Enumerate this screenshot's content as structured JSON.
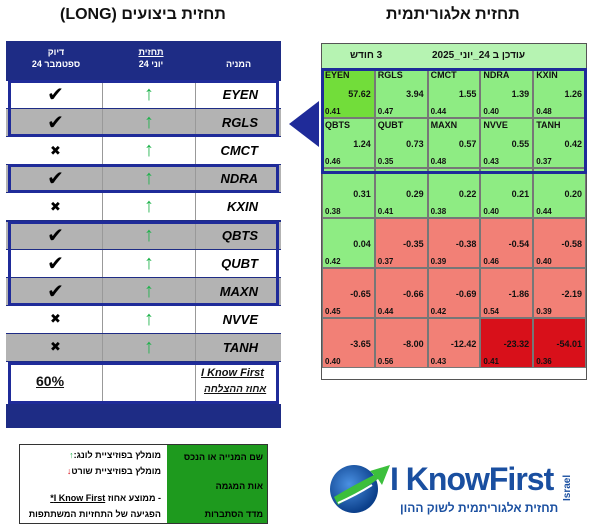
{
  "titles": {
    "right": "תחזית אלגוריתמית",
    "left": "תחזית ביצועים (LONG)"
  },
  "perf": {
    "headers": {
      "accuracy": "דיוק",
      "accuracy_date": "24 ספטמבר",
      "forecast": "תחזית",
      "forecast_date": "24 יוני",
      "stock": "המניה"
    },
    "rows": [
      {
        "ticker": "EYEN",
        "result": "check"
      },
      {
        "ticker": "RGLS",
        "result": "check"
      },
      {
        "ticker": "CMCT",
        "result": "x"
      },
      {
        "ticker": "NDRA",
        "result": "check"
      },
      {
        "ticker": "KXIN",
        "result": "x"
      },
      {
        "ticker": "QBTS",
        "result": "check"
      },
      {
        "ticker": "QUBT",
        "result": "check"
      },
      {
        "ticker": "MAXN",
        "result": "check"
      },
      {
        "ticker": "NVVE",
        "result": "x"
      },
      {
        "ticker": "TANH",
        "result": "x"
      }
    ],
    "symbols": {
      "check": "✔",
      "x": "✖",
      "up": "↑"
    },
    "footer": {
      "percent": "60%",
      "brand": "I Know First",
      "label": "אחוז ההצלחה"
    }
  },
  "heatmap": {
    "updated": "עודכן ב 24_יוני_2025",
    "horizon": "3 חודש",
    "cells": [
      {
        "name": "EYEN",
        "value": "57.62",
        "p": "0.41",
        "color": "#72dd3a"
      },
      {
        "name": "RGLS",
        "value": "3.94",
        "p": "0.47",
        "color": "#8eec83"
      },
      {
        "name": "CMCT",
        "value": "1.55",
        "p": "0.44",
        "color": "#8eec83"
      },
      {
        "name": "NDRA",
        "value": "1.39",
        "p": "0.40",
        "color": "#8eec83"
      },
      {
        "name": "KXIN",
        "value": "1.26",
        "p": "0.48",
        "color": "#8eec83"
      },
      {
        "name": "QBTS",
        "value": "1.24",
        "p": "0.46",
        "color": "#8eec83"
      },
      {
        "name": "QUBT",
        "value": "0.73",
        "p": "0.35",
        "color": "#8eec83"
      },
      {
        "name": "MAXN",
        "value": "0.57",
        "p": "0.48",
        "color": "#8eec83"
      },
      {
        "name": "NVVE",
        "value": "0.55",
        "p": "0.43",
        "color": "#8eec83"
      },
      {
        "name": "TANH",
        "value": "0.42",
        "p": "0.37",
        "color": "#8eec83"
      },
      {
        "name": "",
        "value": "0.31",
        "p": "0.38",
        "color": "#8eec83"
      },
      {
        "name": "",
        "value": "0.29",
        "p": "0.41",
        "color": "#8eec83"
      },
      {
        "name": "",
        "value": "0.22",
        "p": "0.38",
        "color": "#8eec83"
      },
      {
        "name": "",
        "value": "0.21",
        "p": "0.40",
        "color": "#8eec83"
      },
      {
        "name": "",
        "value": "0.20",
        "p": "0.44",
        "color": "#8eec83"
      },
      {
        "name": "",
        "value": "0.04",
        "p": "0.42",
        "color": "#8eec83"
      },
      {
        "name": "",
        "value": "-0.35",
        "p": "0.37",
        "color": "#f28076"
      },
      {
        "name": "",
        "value": "-0.38",
        "p": "0.39",
        "color": "#f28076"
      },
      {
        "name": "",
        "value": "-0.54",
        "p": "0.46",
        "color": "#f28076"
      },
      {
        "name": "",
        "value": "-0.58",
        "p": "0.40",
        "color": "#f28076"
      },
      {
        "name": "",
        "value": "-0.65",
        "p": "0.45",
        "color": "#f28076"
      },
      {
        "name": "",
        "value": "-0.66",
        "p": "0.44",
        "color": "#f28076"
      },
      {
        "name": "",
        "value": "-0.69",
        "p": "0.42",
        "color": "#f28076"
      },
      {
        "name": "",
        "value": "-1.86",
        "p": "0.54",
        "color": "#f28076"
      },
      {
        "name": "",
        "value": "-2.19",
        "p": "0.39",
        "color": "#f28076"
      },
      {
        "name": "",
        "value": "-3.65",
        "p": "0.40",
        "color": "#f28076"
      },
      {
        "name": "",
        "value": "-8.00",
        "p": "0.56",
        "color": "#f28076"
      },
      {
        "name": "",
        "value": "-12.42",
        "p": "0.43",
        "color": "#f28076"
      },
      {
        "name": "",
        "value": "-23.32",
        "p": "0.41",
        "color": "#d8101a"
      },
      {
        "name": "",
        "value": "-54.01",
        "p": "0.36",
        "color": "#d8101a"
      }
    ]
  },
  "legend": {
    "right1": "שם המנייה או הנכס",
    "right2": "אות המגמה",
    "right3": "מדד הסתברות",
    "left1": "מומלץ בפוזיציית לונג:",
    "left2": "מומלץ בפוזיציית שורט",
    "left3": "- ממוצע אחוז",
    "left3_brand": "I Know First*",
    "left4": "הפגיעה של התחזיות המשתתפות",
    "up": "↑",
    "down": "↓"
  },
  "logo": {
    "brand": "I KnowFirst",
    "country": "Israel",
    "tagline": "תחזית אלגוריתמית לשוק ההון"
  },
  "colors": {
    "navy": "#1e2c85",
    "grey_row": "#b3b3b3",
    "white_row": "#ffffff",
    "green": "#8eec83",
    "bright_green": "#72dd3a",
    "red": "#f28076",
    "dark_red": "#d8101a",
    "up_arrow": "#1db24a"
  }
}
